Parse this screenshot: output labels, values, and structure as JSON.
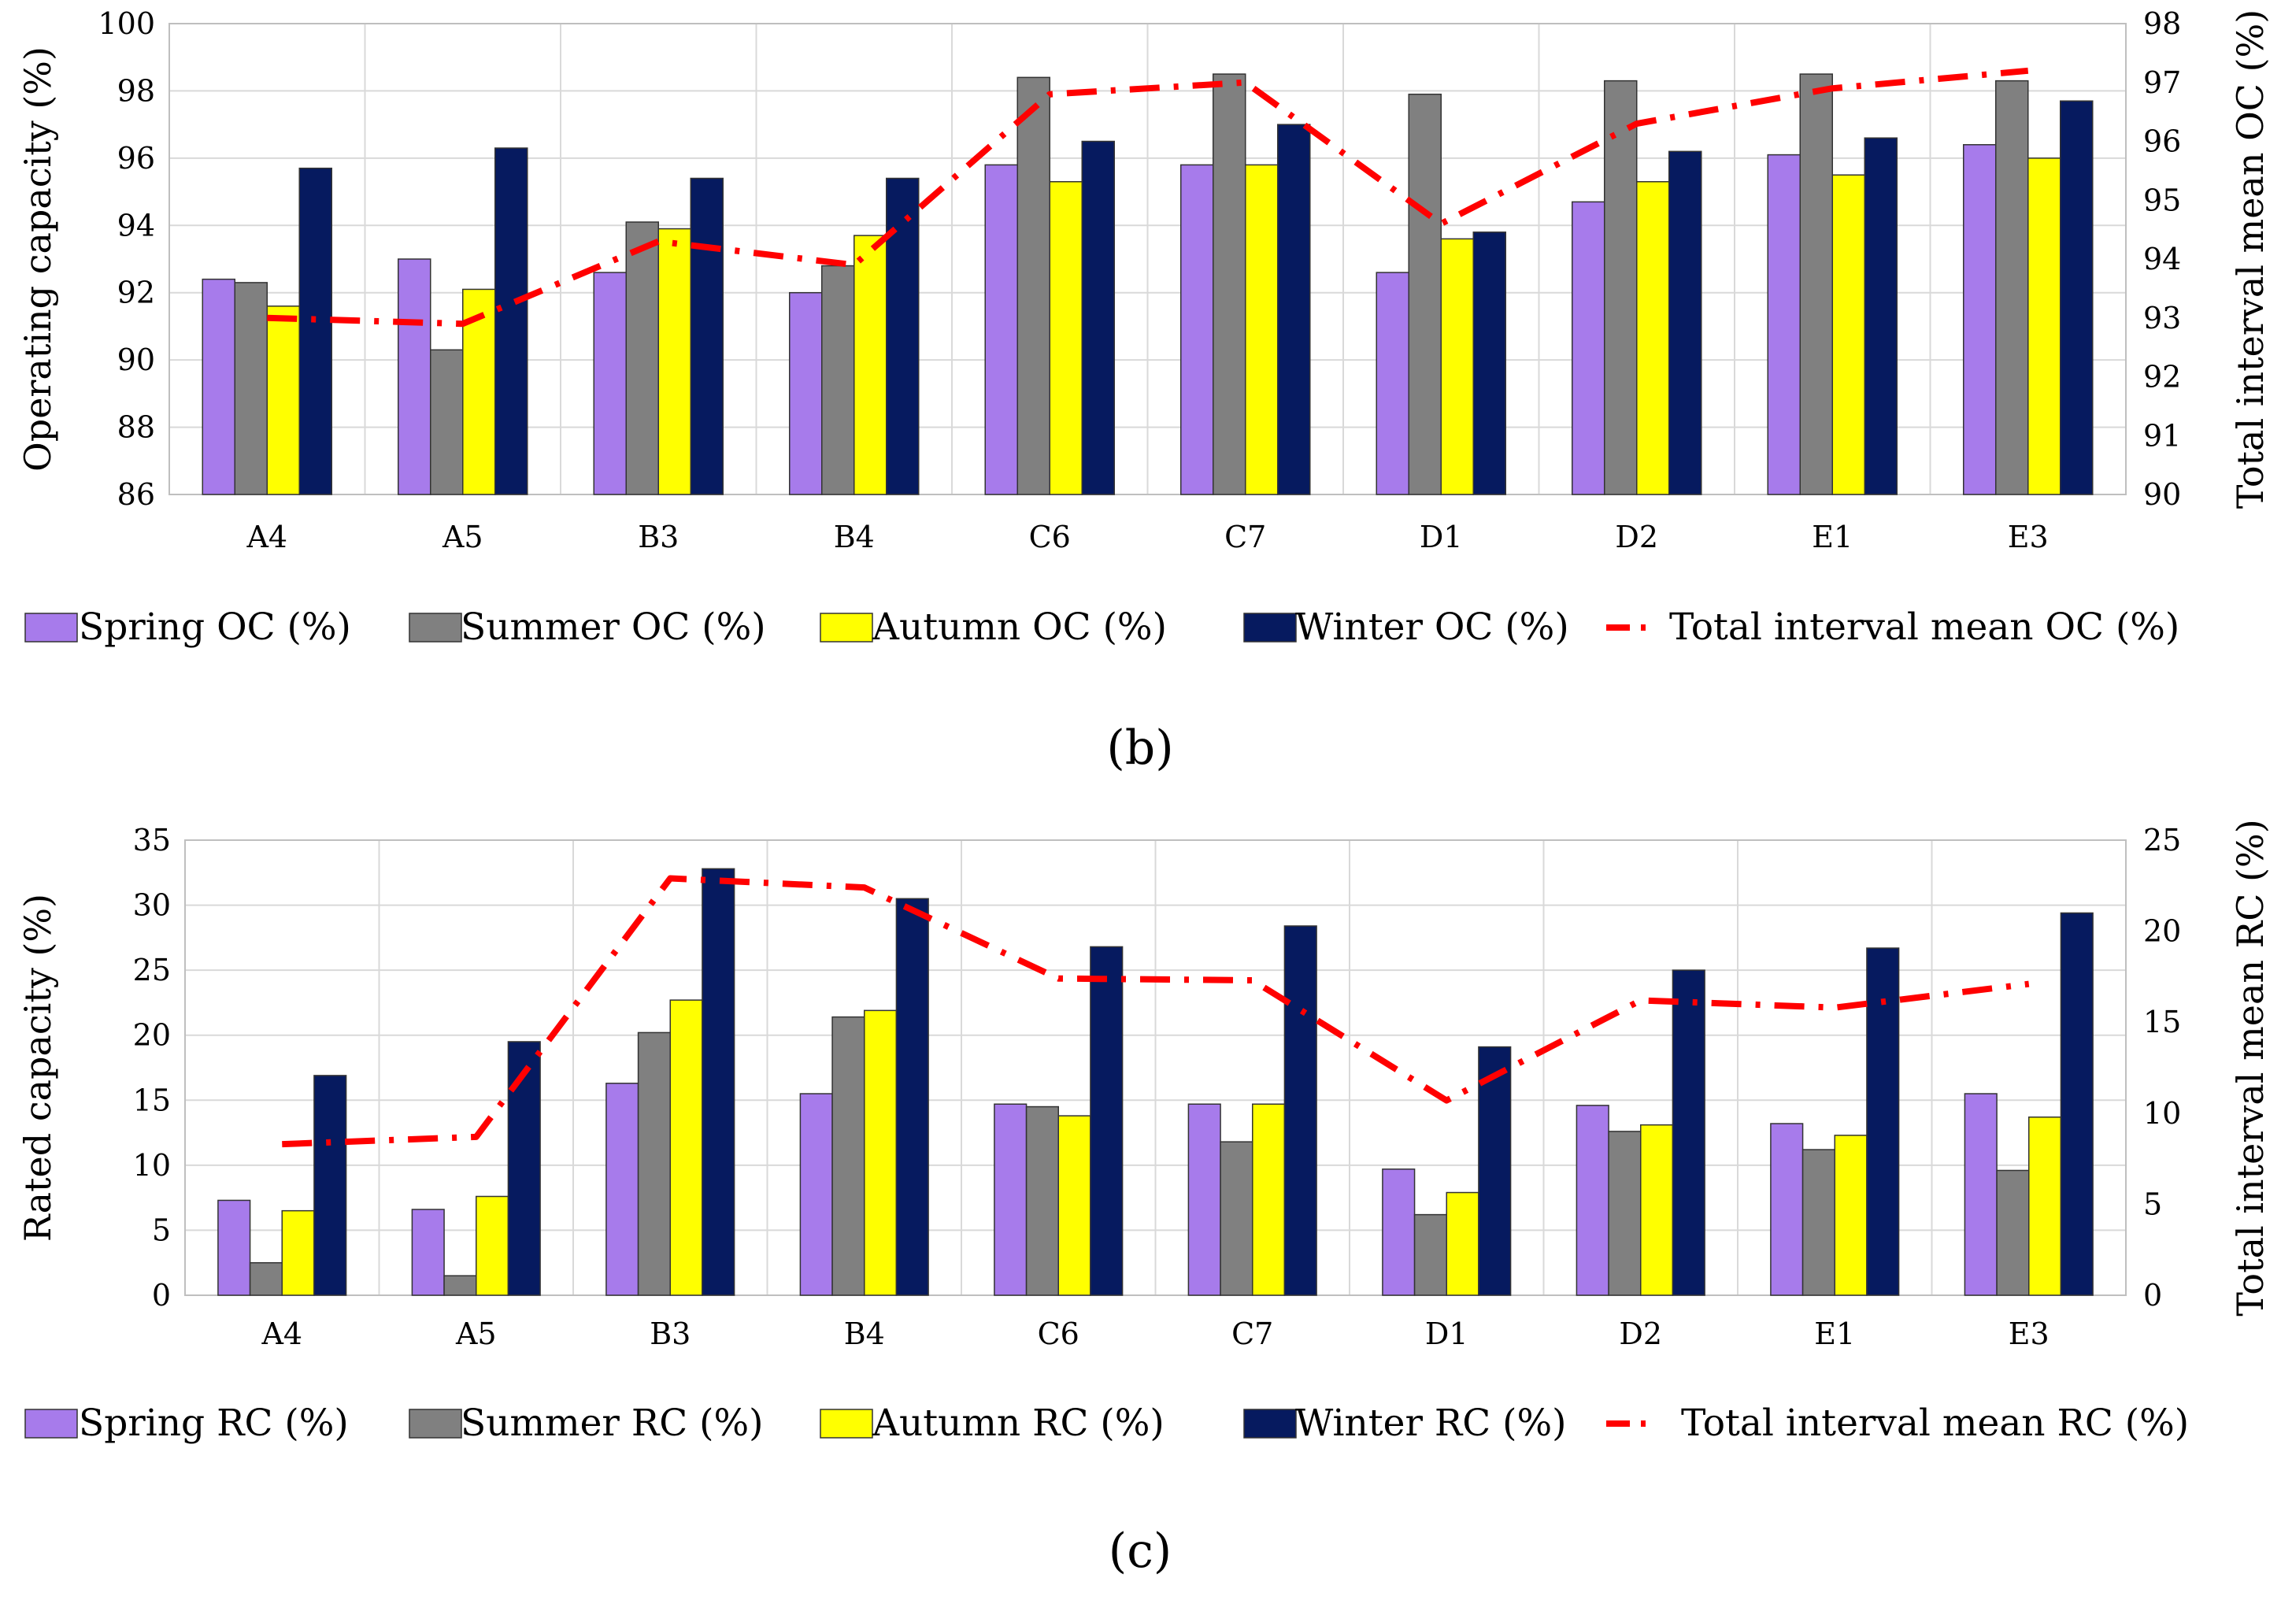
{
  "colors": {
    "spring": "#A77BEB",
    "summer": "#808080",
    "autumn": "#FFFF00",
    "winter": "#061A5F",
    "mean": "#FF0000"
  },
  "chart_data": [
    {
      "type": "bar",
      "panel_label": "(b)",
      "ylabel": "Operating capacity (%)",
      "ylabel2": "Total interval mean OC (%)",
      "ylim": [
        86,
        100
      ],
      "yticks": [
        86,
        88,
        90,
        92,
        94,
        96,
        98,
        100
      ],
      "ylim2": [
        90,
        98
      ],
      "yticks2": [
        90,
        91,
        92,
        93,
        94,
        95,
        96,
        97,
        98
      ],
      "grid": true,
      "legend_position": "bottom",
      "categories": [
        "A4",
        "A5",
        "B3",
        "B4",
        "C6",
        "C7",
        "D1",
        "D2",
        "E1",
        "E3"
      ],
      "series": [
        {
          "name": "Spring  OC (%)",
          "color_key": "spring",
          "values": [
            92.4,
            93.0,
            92.6,
            92.0,
            95.8,
            95.8,
            92.6,
            94.7,
            96.1,
            96.4
          ]
        },
        {
          "name": "Summer OC (%)",
          "color_key": "summer",
          "values": [
            92.3,
            90.3,
            94.1,
            92.8,
            98.4,
            98.5,
            97.9,
            98.3,
            98.5,
            98.3
          ]
        },
        {
          "name": "Autumn  OC (%)",
          "color_key": "autumn",
          "values": [
            91.6,
            92.1,
            93.9,
            93.7,
            95.3,
            95.8,
            93.6,
            95.3,
            95.5,
            96.0
          ]
        },
        {
          "name": "Winter OC (%)",
          "color_key": "winter",
          "values": [
            95.7,
            96.3,
            95.4,
            95.4,
            96.5,
            97.0,
            93.8,
            96.2,
            96.6,
            97.7
          ]
        }
      ],
      "line_series": {
        "name": "Total interval mean OC (%)",
        "color_key": "mean",
        "axis": "right",
        "values": [
          93.0,
          92.9,
          94.3,
          93.9,
          96.8,
          97.0,
          94.6,
          96.3,
          96.9,
          97.2
        ]
      }
    },
    {
      "type": "bar",
      "panel_label": "(c)",
      "ylabel": "Rated capacity (%)",
      "ylabel2": "Total interval mean RC  (%)",
      "ylim": [
        0,
        35
      ],
      "yticks": [
        0,
        5,
        10,
        15,
        20,
        25,
        30,
        35
      ],
      "ylim2": [
        0,
        25
      ],
      "yticks2": [
        0,
        5,
        10,
        15,
        20,
        25
      ],
      "grid": true,
      "legend_position": "bottom",
      "categories": [
        "A4",
        "A5",
        "B3",
        "B4",
        "C6",
        "C7",
        "D1",
        "D2",
        "E1",
        "E3"
      ],
      "series": [
        {
          "name": "Spring RC  (%)",
          "color_key": "spring",
          "values": [
            7.3,
            6.6,
            16.3,
            15.5,
            14.7,
            14.7,
            9.7,
            14.6,
            13.2,
            15.5
          ]
        },
        {
          "name": "Summer RC  (%)",
          "color_key": "summer",
          "values": [
            2.5,
            1.5,
            20.2,
            21.4,
            14.5,
            11.8,
            6.2,
            12.6,
            11.2,
            9.6
          ]
        },
        {
          "name": "Autumn RC  (%)",
          "color_key": "autumn",
          "values": [
            6.5,
            7.6,
            22.7,
            21.9,
            13.8,
            14.7,
            7.9,
            13.1,
            12.3,
            13.7
          ]
        },
        {
          "name": "Winter RC  (%)",
          "color_key": "winter",
          "values": [
            16.9,
            19.5,
            32.8,
            30.5,
            26.8,
            28.4,
            19.1,
            25.0,
            26.7,
            29.4
          ]
        }
      ],
      "line_series": {
        "name": "Total interval mean RC  (%)",
        "color_key": "mean",
        "axis": "right",
        "values": [
          8.3,
          8.7,
          22.9,
          22.4,
          17.4,
          17.3,
          10.7,
          16.2,
          15.8,
          17.1
        ]
      }
    }
  ]
}
